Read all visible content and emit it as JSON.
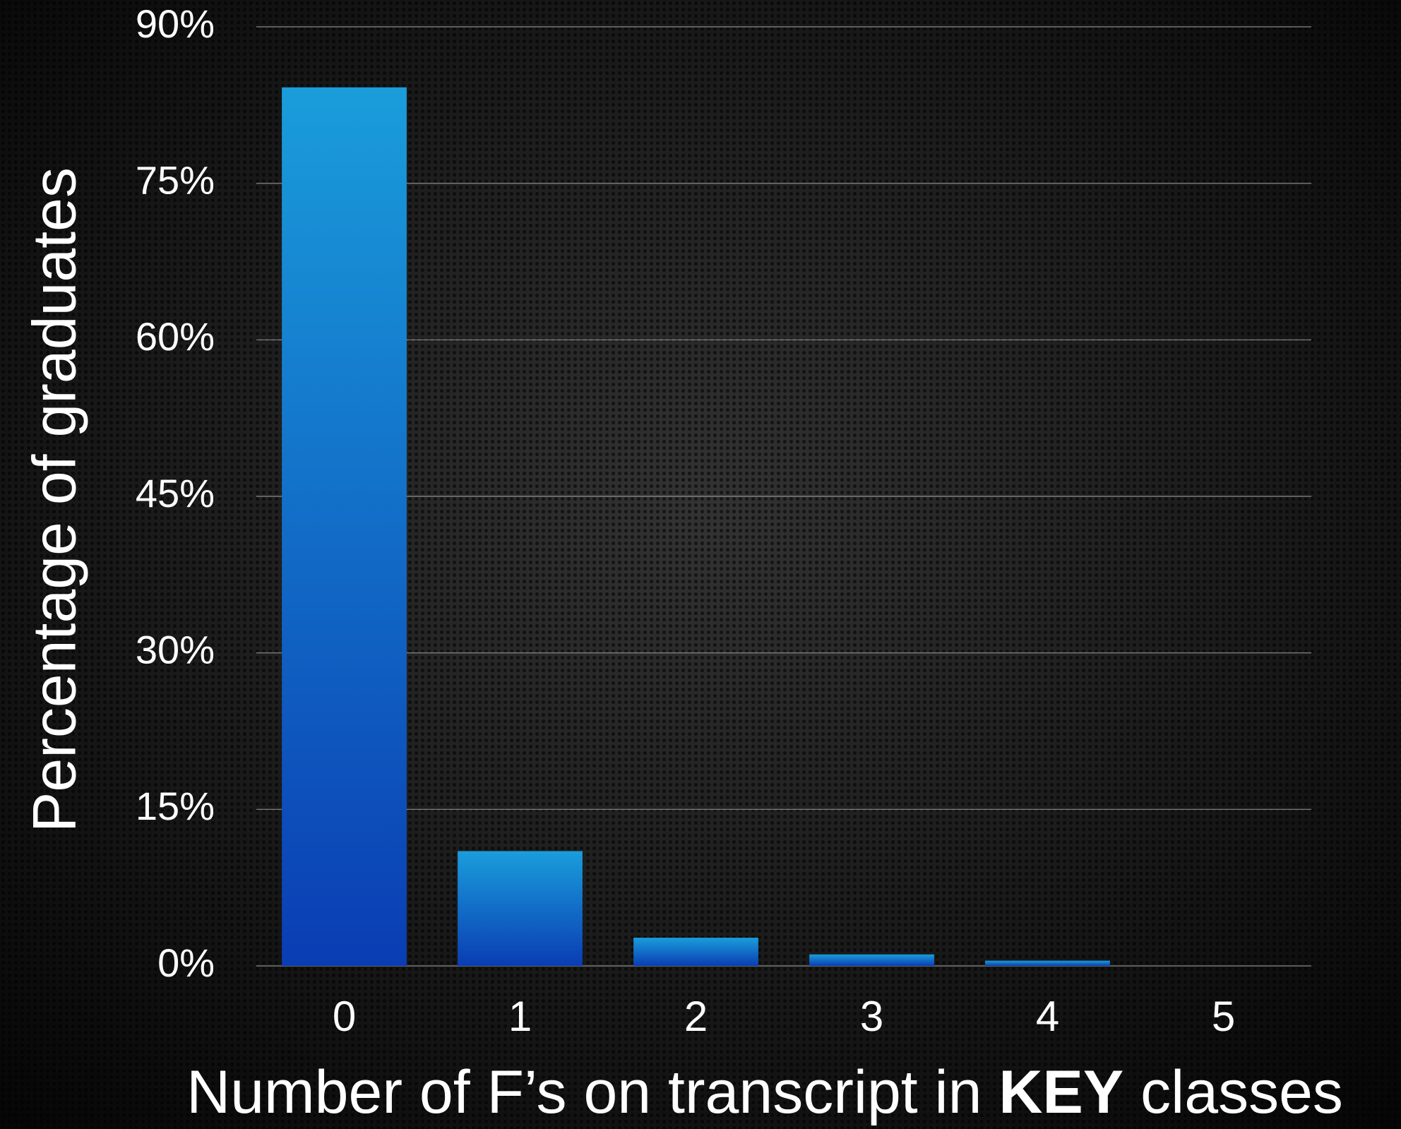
{
  "chart_data": {
    "type": "bar",
    "y_label": "Percentage of graduates",
    "x_label": [
      "Number of F’s on transcript in ",
      "KEY",
      " classes"
    ],
    "categories": [
      "0",
      "1",
      "2",
      "3",
      "4",
      "5"
    ],
    "values": [
      84.2,
      11.0,
      2.7,
      1.1,
      0.5,
      0
    ],
    "color": [
      "#1a9ddb",
      "#0a3db3"
    ],
    "ylim": [
      0,
      90
    ],
    "yticks": [
      {
        "value": 0,
        "label": "0%"
      },
      {
        "value": 15,
        "label": "15%"
      },
      {
        "value": 30,
        "label": "30%"
      },
      {
        "value": 45,
        "label": "45%"
      },
      {
        "value": 60,
        "label": "60%"
      },
      {
        "value": 75,
        "label": "75%"
      },
      {
        "value": 90,
        "label": "90%"
      }
    ],
    "grid": true
  }
}
